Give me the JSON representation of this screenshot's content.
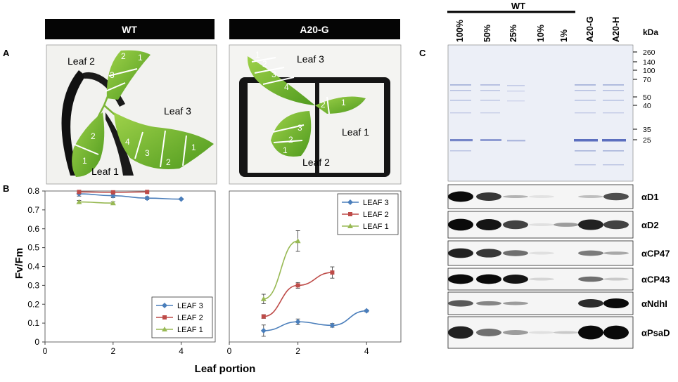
{
  "panel_labels": {
    "a": "A",
    "b": "B",
    "c": "C"
  },
  "headers": {
    "wt": "WT",
    "a20g": "A20-G"
  },
  "photo_wt": {
    "leaf_labels": [
      "Leaf 2",
      "Leaf 3",
      "Leaf 1"
    ],
    "section_numbers": [
      "2",
      "1",
      "3",
      "2",
      "1",
      "4",
      "3",
      "2",
      "1"
    ]
  },
  "photo_a20g": {
    "leaf_labels": [
      "Leaf 3",
      "Leaf 1",
      "Leaf 2"
    ],
    "section_numbers": [
      "1",
      "2",
      "3",
      "4",
      "2",
      "1",
      "3",
      "2",
      "1"
    ]
  },
  "chart_data": [
    {
      "type": "line",
      "panel": "WT",
      "xlabel": "Leaf portion",
      "ylabel": "Fv/Fm",
      "xlim": [
        0,
        5
      ],
      "ylim": [
        0,
        0.8
      ],
      "x_ticks": [
        "0",
        "2",
        "4"
      ],
      "y_ticks": [
        "0",
        "0.1",
        "0.2",
        "0.3",
        "0.4",
        "0.5",
        "0.6",
        "0.7",
        "0.8"
      ],
      "legend_position": "bottom-right",
      "series": [
        {
          "name": "LEAF 3",
          "color": "#4a7ebb",
          "marker": "diamond",
          "x": [
            1,
            2,
            3,
            4
          ],
          "y": [
            0.785,
            0.775,
            0.762,
            0.757
          ],
          "err": [
            0.012,
            0.01,
            0.008,
            0.004
          ]
        },
        {
          "name": "LEAF 2",
          "color": "#be4b48",
          "marker": "square",
          "x": [
            1,
            2,
            3
          ],
          "y": [
            0.795,
            0.793,
            0.795
          ],
          "err": [
            0.004,
            0.004,
            0.003
          ]
        },
        {
          "name": "LEAF 1",
          "color": "#98b954",
          "marker": "triangle",
          "x": [
            1,
            2
          ],
          "y": [
            0.742,
            0.736
          ],
          "err": [
            0.008,
            0.006
          ]
        }
      ]
    },
    {
      "type": "line",
      "panel": "A20-G",
      "xlabel": "Leaf portion",
      "ylabel": "",
      "xlim": [
        0,
        5
      ],
      "ylim": [
        0,
        0.8
      ],
      "x_ticks": [
        "0",
        "2",
        "4"
      ],
      "legend_position": "top-right",
      "series": [
        {
          "name": "LEAF 3",
          "color": "#4a7ebb",
          "marker": "diamond",
          "x": [
            1,
            2,
            3,
            4
          ],
          "y": [
            0.06,
            0.107,
            0.088,
            0.165
          ],
          "err": [
            0.03,
            0.015,
            0.01,
            0.005
          ]
        },
        {
          "name": "LEAF 2",
          "color": "#be4b48",
          "marker": "square",
          "x": [
            1,
            2,
            3
          ],
          "y": [
            0.135,
            0.3,
            0.368
          ],
          "err": [
            0.01,
            0.015,
            0.03
          ]
        },
        {
          "name": "LEAF 1",
          "color": "#98b954",
          "marker": "triangle",
          "x": [
            1,
            2
          ],
          "y": [
            0.228,
            0.535
          ],
          "err": [
            0.025,
            0.055
          ]
        }
      ]
    }
  ],
  "gel": {
    "wt_label": "WT",
    "lane_labels": [
      "100%",
      "50%",
      "25%",
      "10%",
      "1%",
      "A20-G",
      "A20-H"
    ],
    "kda_label": "kDa",
    "mw_markers": [
      "260",
      "140",
      "100",
      "70",
      "50",
      "40",
      "35",
      "25"
    ],
    "blot_labels": [
      "αD1",
      "αD2",
      "αCP47",
      "αCP43",
      "αNdhI",
      "αPsaD"
    ]
  }
}
